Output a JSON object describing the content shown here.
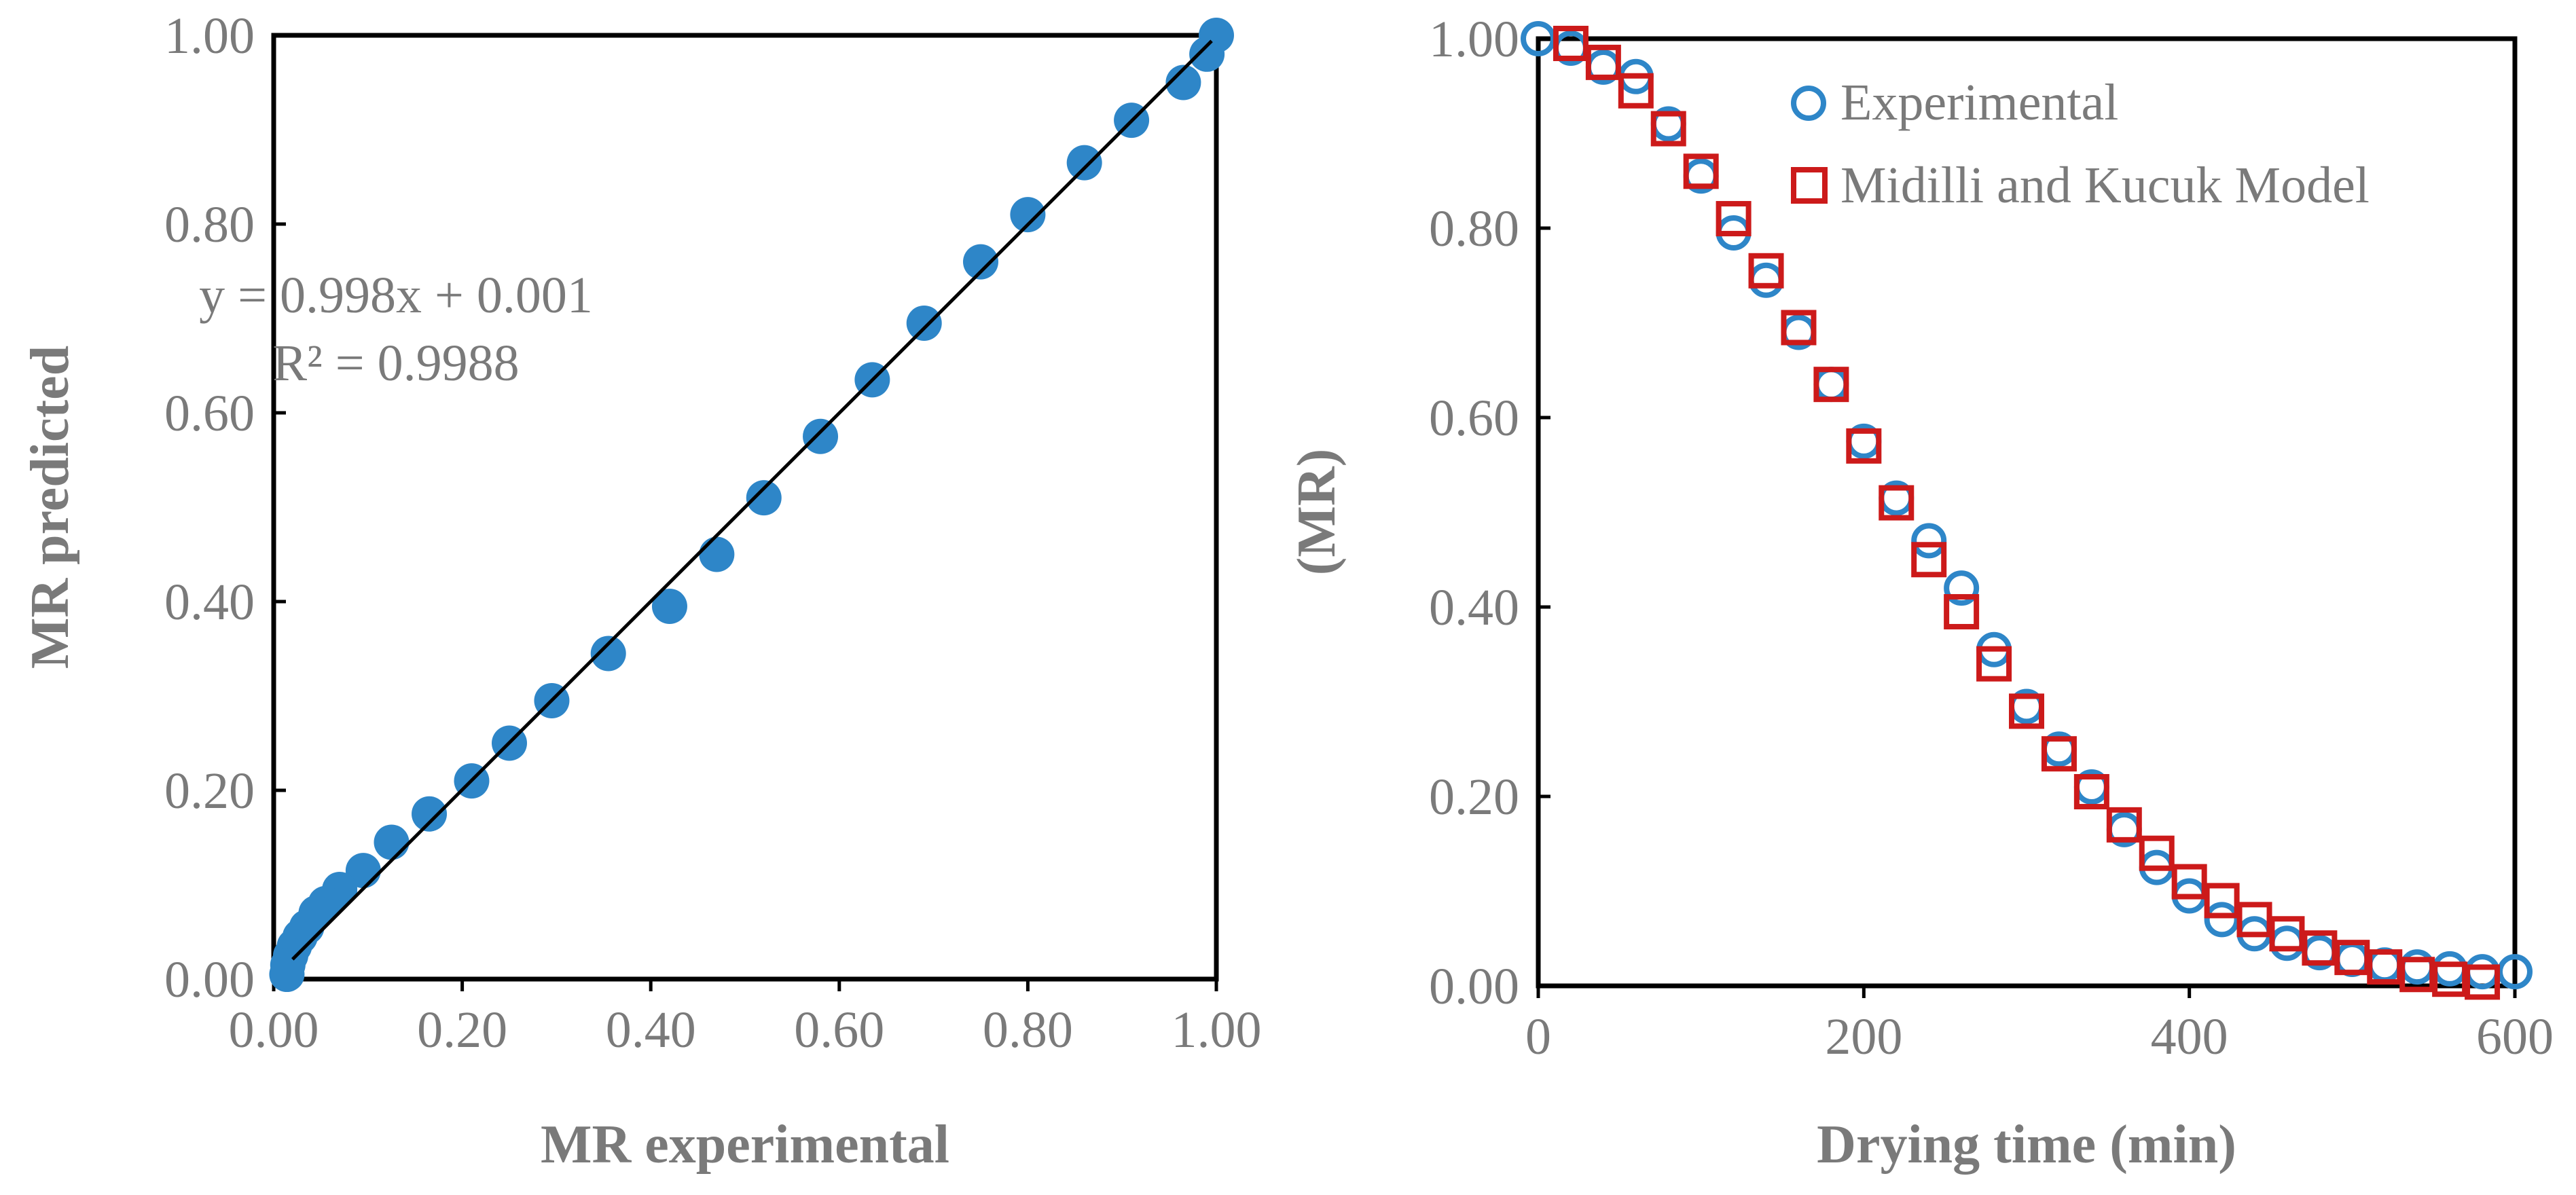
{
  "chart_data": [
    {
      "type": "scatter",
      "xlabel": "MR experimental",
      "ylabel": "MR predicted",
      "xlim": [
        0,
        1
      ],
      "ylim": [
        0,
        1
      ],
      "x_ticks": [
        "0.00",
        "0.20",
        "0.40",
        "0.60",
        "0.80",
        "1.00"
      ],
      "y_ticks": [
        "0.00",
        "0.20",
        "0.40",
        "0.60",
        "0.80",
        "1.00"
      ],
      "grid": false,
      "annotations": [
        "y = 0.998x + 0.001",
        "R² = 0.9988"
      ],
      "trendline": {
        "slope": 0.998,
        "intercept": 0.001,
        "x_range": [
          0.02,
          0.995
        ]
      },
      "series": [
        {
          "color": "#2e86c8",
          "x": [
            1.0,
            0.99,
            0.965,
            0.91,
            0.86,
            0.8,
            0.75,
            0.69,
            0.635,
            0.58,
            0.52,
            0.47,
            0.42,
            0.355,
            0.295,
            0.25,
            0.21,
            0.165,
            0.125,
            0.095,
            0.07,
            0.055,
            0.045,
            0.035,
            0.028,
            0.022,
            0.018,
            0.015,
            0.014
          ],
          "y": [
            1.0,
            0.98,
            0.95,
            0.91,
            0.865,
            0.81,
            0.76,
            0.695,
            0.635,
            0.575,
            0.51,
            0.45,
            0.395,
            0.345,
            0.295,
            0.25,
            0.21,
            0.175,
            0.145,
            0.115,
            0.095,
            0.08,
            0.07,
            0.055,
            0.045,
            0.035,
            0.025,
            0.015,
            0.005
          ]
        }
      ]
    },
    {
      "type": "scatter",
      "xlabel": "Drying time (min)",
      "ylabel": "(MR)",
      "xlim": [
        0,
        600
      ],
      "ylim": [
        0,
        1
      ],
      "x_ticks": [
        "0",
        "200",
        "400",
        "600"
      ],
      "y_ticks": [
        "0.00",
        "0.20",
        "0.40",
        "0.60",
        "0.80",
        "1.00"
      ],
      "grid": false,
      "legend": "top-right",
      "series": [
        {
          "name": "Experimental",
          "marker": "circle",
          "color": "#2e86c8",
          "x": [
            0,
            20,
            40,
            60,
            80,
            100,
            120,
            140,
            160,
            180,
            200,
            220,
            240,
            260,
            280,
            300,
            320,
            340,
            360,
            380,
            400,
            420,
            440,
            460,
            480,
            500,
            520,
            540,
            560,
            580,
            600
          ],
          "y": [
            1.0,
            0.99,
            0.97,
            0.96,
            0.91,
            0.855,
            0.795,
            0.745,
            0.69,
            0.635,
            0.575,
            0.515,
            0.47,
            0.42,
            0.355,
            0.295,
            0.25,
            0.21,
            0.165,
            0.125,
            0.095,
            0.07,
            0.055,
            0.045,
            0.035,
            0.028,
            0.022,
            0.02,
            0.018,
            0.015,
            0.015
          ]
        },
        {
          "name": "Midilli and Kucuk Model",
          "marker": "square",
          "color": "#cc1a1a",
          "x": [
            20,
            40,
            60,
            80,
            100,
            120,
            140,
            160,
            180,
            200,
            220,
            240,
            260,
            280,
            300,
            320,
            340,
            360,
            380,
            400,
            420,
            440,
            460,
            480,
            500,
            520,
            540,
            560,
            580
          ],
          "y": [
            0.995,
            0.975,
            0.945,
            0.905,
            0.86,
            0.81,
            0.755,
            0.695,
            0.635,
            0.57,
            0.51,
            0.45,
            0.395,
            0.34,
            0.29,
            0.245,
            0.205,
            0.17,
            0.14,
            0.11,
            0.09,
            0.07,
            0.055,
            0.04,
            0.03,
            0.02,
            0.012,
            0.007,
            0.004
          ]
        }
      ]
    }
  ]
}
